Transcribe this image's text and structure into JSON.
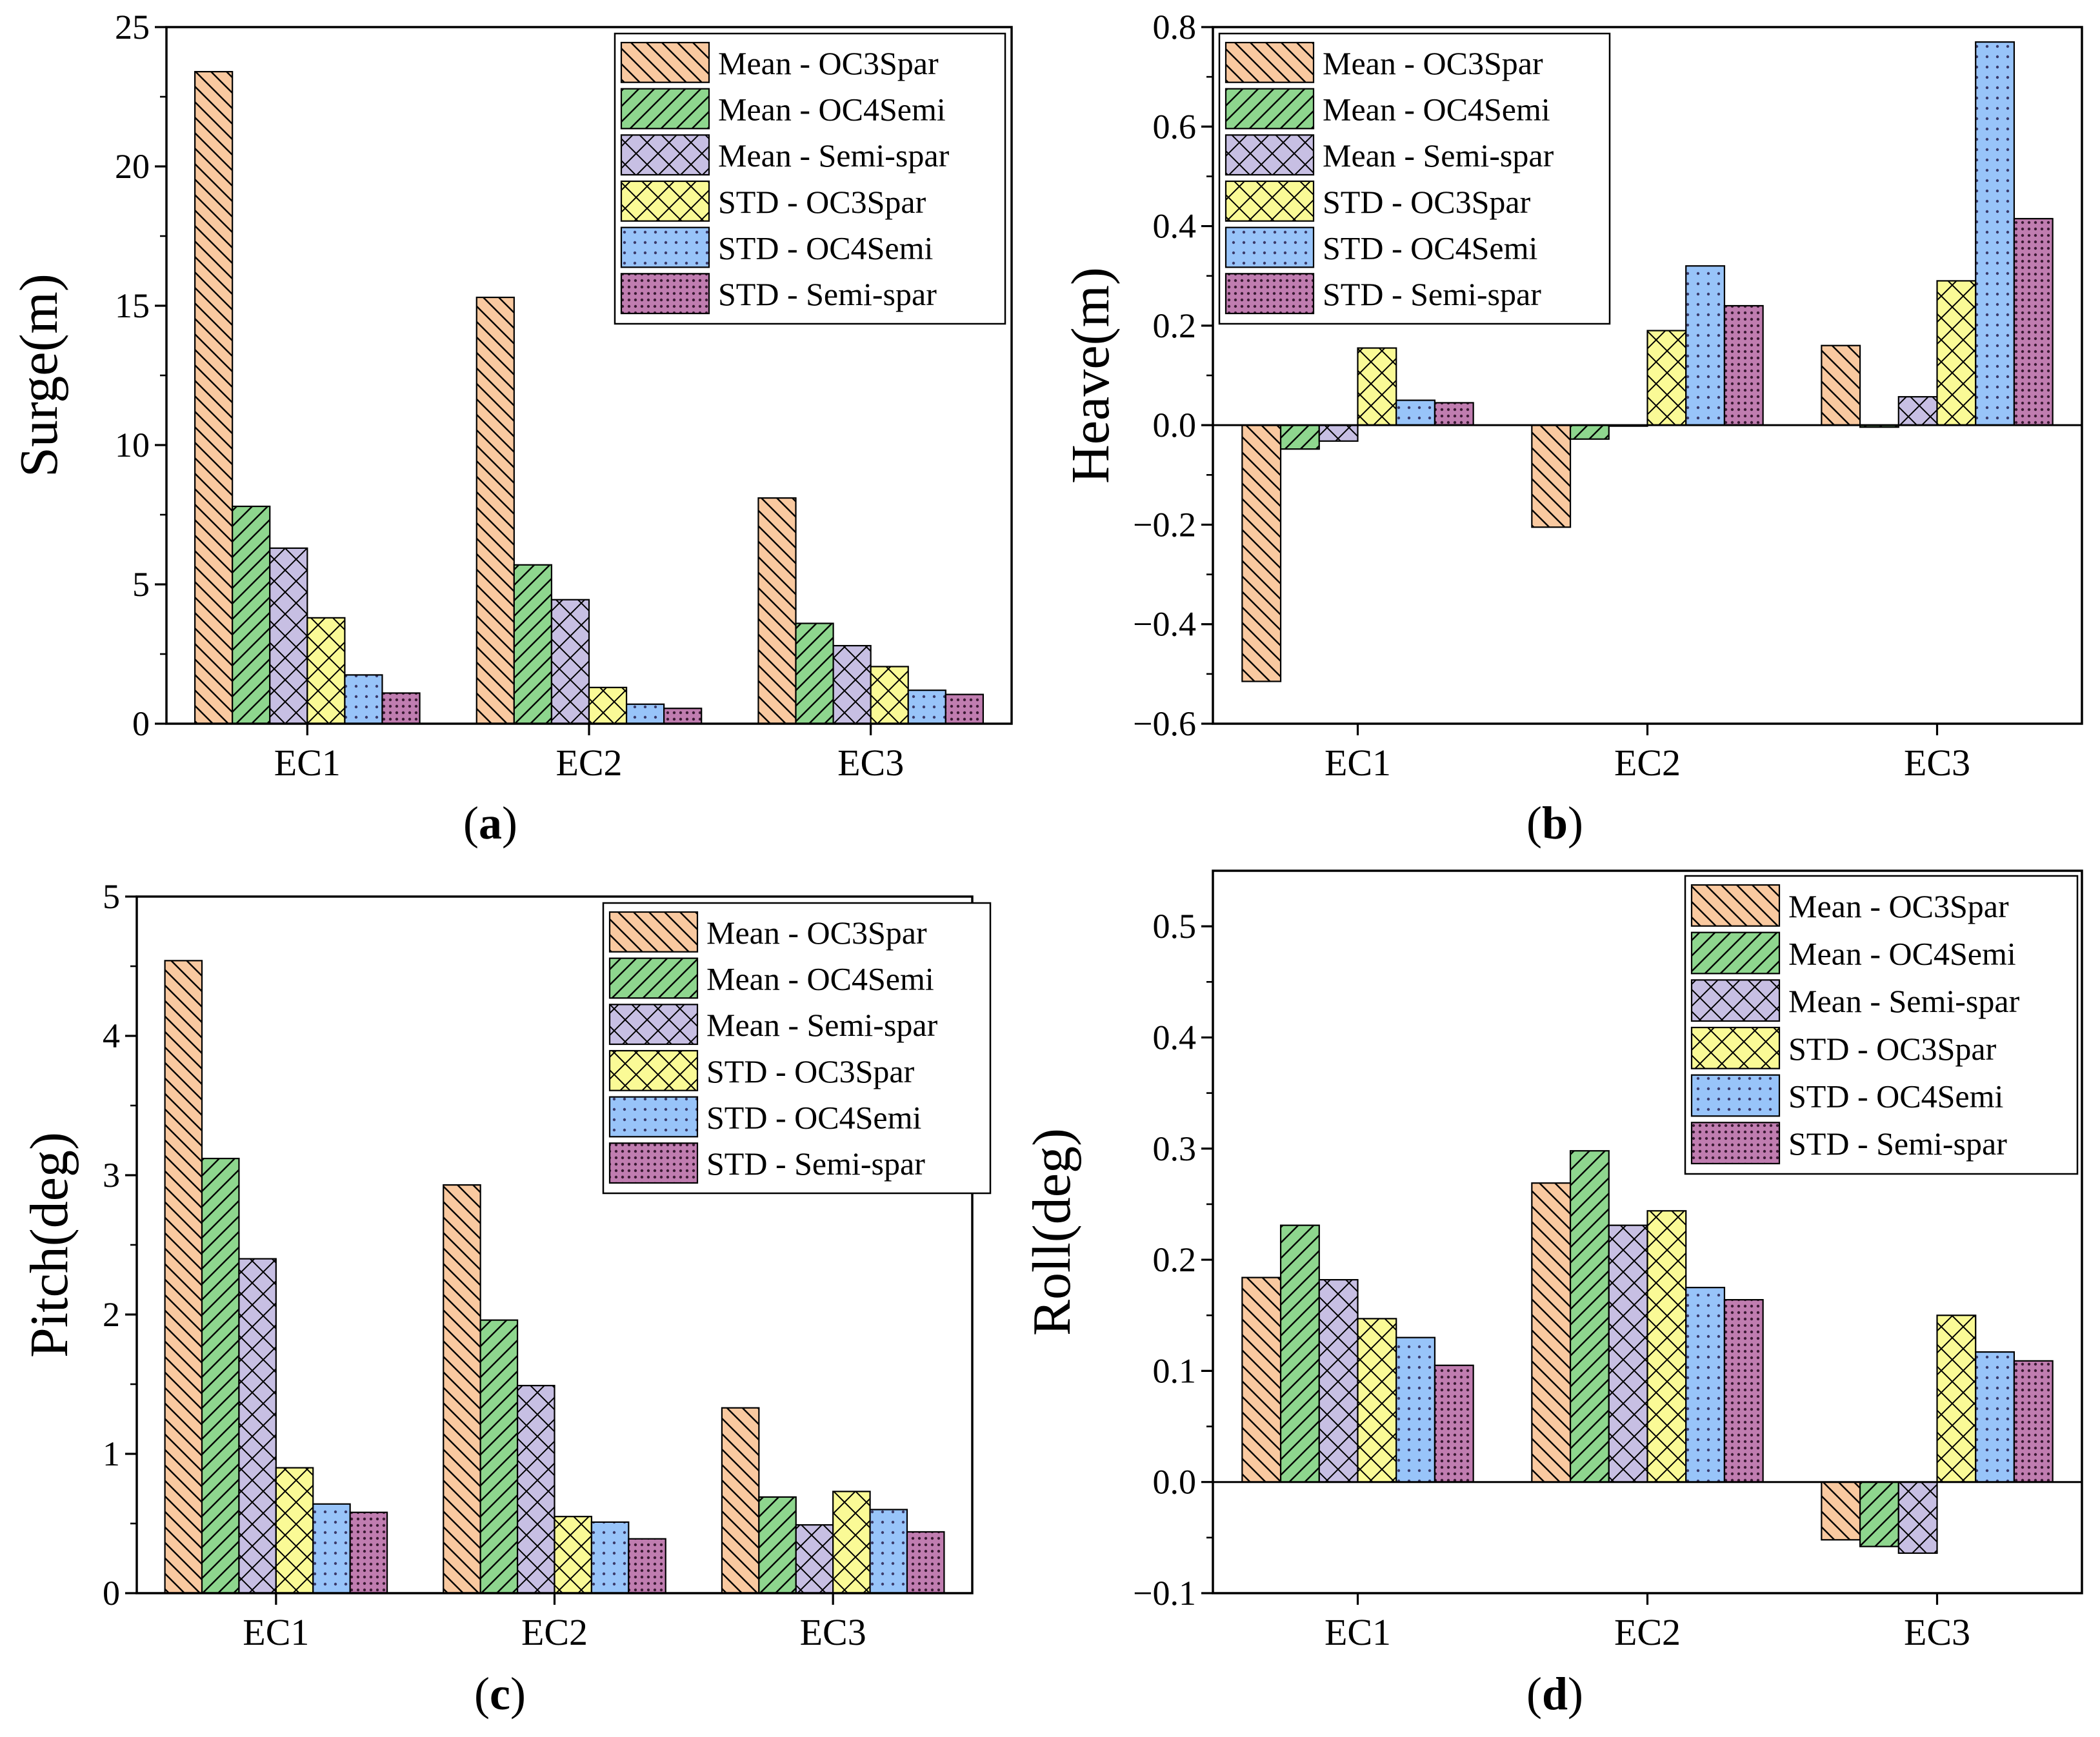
{
  "series_names": [
    "Mean - OC3Spar",
    "Mean - OC4Semi",
    "Mean - Semi-spar",
    "STD - OC3Spar",
    "STD - OC4Semi",
    "STD - Semi-spar"
  ],
  "series_colors": [
    "#f9c9a0",
    "#8ed68e",
    "#c7bfe3",
    "#fafa96",
    "#98c4f9",
    "#c07db0"
  ],
  "series_patterns": [
    "diag-back",
    "diag-fwd",
    "cross",
    "cross",
    "dots",
    "dense-dots"
  ],
  "chart_data": [
    {
      "type": "bar",
      "panel_label": "a",
      "title": "",
      "xlabel": "",
      "ylabel": "Surge(m)",
      "categories": [
        "EC1",
        "EC2",
        "EC3"
      ],
      "ylim": [
        0,
        25
      ],
      "yticks": [
        0,
        5,
        10,
        15,
        20,
        25
      ],
      "ytick_labels": [
        "0",
        "5",
        "10",
        "15",
        "20",
        "25"
      ],
      "legend_position": "top-right",
      "series": [
        {
          "name": "Mean - OC3Spar",
          "values": [
            23.4,
            15.3,
            8.1
          ]
        },
        {
          "name": "Mean - OC4Semi",
          "values": [
            7.8,
            5.7,
            3.6
          ]
        },
        {
          "name": "Mean - Semi-spar",
          "values": [
            6.3,
            4.45,
            2.8
          ]
        },
        {
          "name": "STD - OC3Spar",
          "values": [
            3.8,
            1.3,
            2.05
          ]
        },
        {
          "name": "STD - OC4Semi",
          "values": [
            1.75,
            0.7,
            1.2
          ]
        },
        {
          "name": "STD - Semi-spar",
          "values": [
            1.1,
            0.55,
            1.05
          ]
        }
      ]
    },
    {
      "type": "bar",
      "panel_label": "b",
      "title": "",
      "xlabel": "",
      "ylabel": "Heave(m)",
      "categories": [
        "EC1",
        "EC2",
        "EC3"
      ],
      "ylim": [
        -0.6,
        0.8
      ],
      "yticks": [
        -0.6,
        -0.4,
        -0.2,
        0.0,
        0.2,
        0.4,
        0.6,
        0.8
      ],
      "ytick_labels": [
        "−0.6",
        "−0.4",
        "−0.2",
        "0.0",
        "0.2",
        "0.4",
        "0.6",
        "0.8"
      ],
      "legend_position": "top-left",
      "series": [
        {
          "name": "Mean - OC3Spar",
          "values": [
            -0.515,
            -0.205,
            0.16
          ]
        },
        {
          "name": "Mean - OC4Semi",
          "values": [
            -0.048,
            -0.028,
            -0.004
          ]
        },
        {
          "name": "Mean - Semi-spar",
          "values": [
            -0.032,
            0.0,
            0.057
          ]
        },
        {
          "name": "STD - OC3Spar",
          "values": [
            0.155,
            0.19,
            0.29
          ]
        },
        {
          "name": "STD - OC4Semi",
          "values": [
            0.05,
            0.32,
            0.77
          ]
        },
        {
          "name": "STD - Semi-spar",
          "values": [
            0.045,
            0.24,
            0.415
          ]
        }
      ]
    },
    {
      "type": "bar",
      "panel_label": "c",
      "title": "",
      "xlabel": "",
      "ylabel": "Pitch(deg)",
      "categories": [
        "EC1",
        "EC2",
        "EC3"
      ],
      "ylim": [
        0,
        5
      ],
      "yticks": [
        0,
        1,
        2,
        3,
        4,
        5
      ],
      "ytick_labels": [
        "0",
        "1",
        "2",
        "3",
        "4",
        "5"
      ],
      "legend_position": "top-right",
      "series": [
        {
          "name": "Mean - OC3Spar",
          "values": [
            4.54,
            2.93,
            1.33
          ]
        },
        {
          "name": "Mean - OC4Semi",
          "values": [
            3.12,
            1.96,
            0.69
          ]
        },
        {
          "name": "Mean - Semi-spar",
          "values": [
            2.4,
            1.49,
            0.49
          ]
        },
        {
          "name": "STD - OC3Spar",
          "values": [
            0.9,
            0.55,
            0.73
          ]
        },
        {
          "name": "STD - OC4Semi",
          "values": [
            0.64,
            0.51,
            0.6
          ]
        },
        {
          "name": "STD - Semi-spar",
          "values": [
            0.58,
            0.39,
            0.44
          ]
        }
      ]
    },
    {
      "type": "bar",
      "panel_label": "d",
      "title": "",
      "xlabel": "",
      "ylabel": "Roll(deg)",
      "categories": [
        "EC1",
        "EC2",
        "EC3"
      ],
      "ylim": [
        -0.1,
        0.55
      ],
      "yticks": [
        -0.1,
        0.0,
        0.1,
        0.2,
        0.3,
        0.4,
        0.5
      ],
      "ytick_labels": [
        "−0.1",
        "0.0",
        "0.1",
        "0.2",
        "0.3",
        "0.4",
        "0.5"
      ],
      "legend_position": "top-right",
      "series": [
        {
          "name": "Mean - OC3Spar",
          "values": [
            0.184,
            0.269,
            -0.052
          ]
        },
        {
          "name": "Mean - OC4Semi",
          "values": [
            0.231,
            0.298,
            -0.058
          ]
        },
        {
          "name": "Mean - Semi-spar",
          "values": [
            0.182,
            0.231,
            -0.064
          ]
        },
        {
          "name": "STD - OC3Spar",
          "values": [
            0.147,
            0.244,
            0.15
          ]
        },
        {
          "name": "STD - OC4Semi",
          "values": [
            0.13,
            0.175,
            0.117
          ]
        },
        {
          "name": "STD - Semi-spar",
          "values": [
            0.105,
            0.164,
            0.109
          ]
        }
      ]
    }
  ]
}
